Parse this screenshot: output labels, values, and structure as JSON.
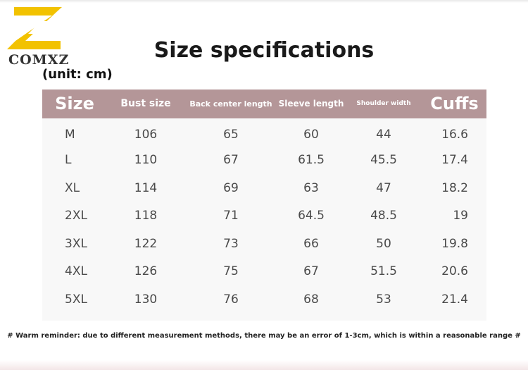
{
  "logo": {
    "text": "COMXZ",
    "icon": "z-logo-icon",
    "color": "#f2c200"
  },
  "title": "Size specifications",
  "unit": "(unit: cm)",
  "header_color": "#b49698",
  "table": {
    "headers": [
      "Size",
      "Bust size",
      "Back center length",
      "Sleeve length",
      "Shoulder width",
      "Cuffs"
    ],
    "rows": [
      [
        "M",
        "106",
        "65",
        "60",
        "44",
        "16.6"
      ],
      [
        "L",
        "110",
        "67",
        "61.5",
        "45.5",
        "17.4"
      ],
      [
        "XL",
        "114",
        "69",
        "63",
        "47",
        "18.2"
      ],
      [
        "2XL",
        "118",
        "71",
        "64.5",
        "48.5",
        "19"
      ],
      [
        "3XL",
        "122",
        "73",
        "66",
        "50",
        "19.8"
      ],
      [
        "4XL",
        "126",
        "75",
        "67",
        "51.5",
        "20.6"
      ],
      [
        "5XL",
        "130",
        "76",
        "68",
        "53",
        "21.4"
      ]
    ]
  },
  "reminder": "# Warm reminder: due to different measurement methods, there may be an error of 1-3cm, which is within a reasonable range #"
}
